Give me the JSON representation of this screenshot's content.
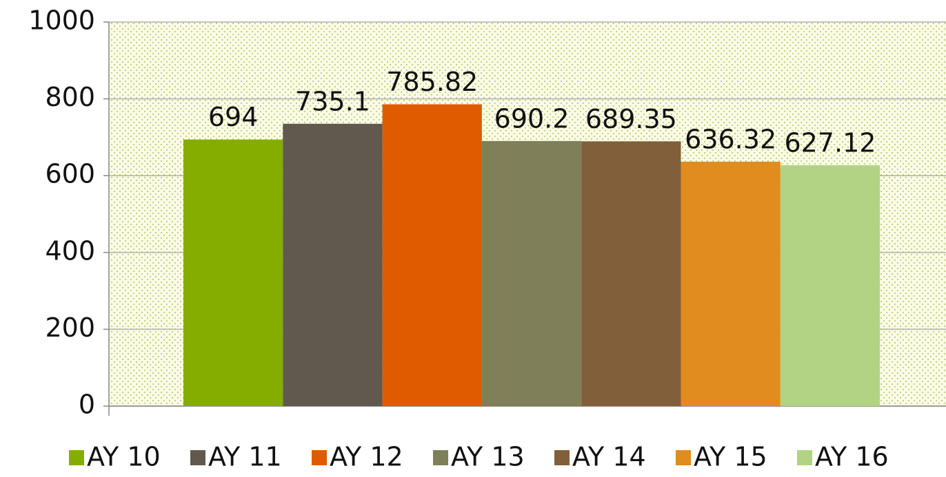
{
  "chart_data": {
    "type": "bar",
    "series": [
      {
        "name": "AY 10",
        "color": "#84ad00",
        "values": [
          694
        ]
      },
      {
        "name": "AY 11",
        "color": "#62594e",
        "values": [
          735.1
        ]
      },
      {
        "name": "AY 12",
        "color": "#e05a00",
        "values": [
          785.82
        ]
      },
      {
        "name": "AY 13",
        "color": "#7f805a",
        "values": [
          690.2
        ]
      },
      {
        "name": "AY 14",
        "color": "#815f3a",
        "values": [
          689.35
        ]
      },
      {
        "name": "AY 15",
        "color": "#e08c1e",
        "values": [
          636.32
        ]
      },
      {
        "name": "AY 16",
        "color": "#b3d384",
        "values": [
          627.12
        ]
      }
    ],
    "ylim": [
      0,
      1000
    ],
    "yticks": [
      0,
      200,
      400,
      600,
      800,
      1000
    ],
    "grid": true,
    "legend": "bottom"
  }
}
